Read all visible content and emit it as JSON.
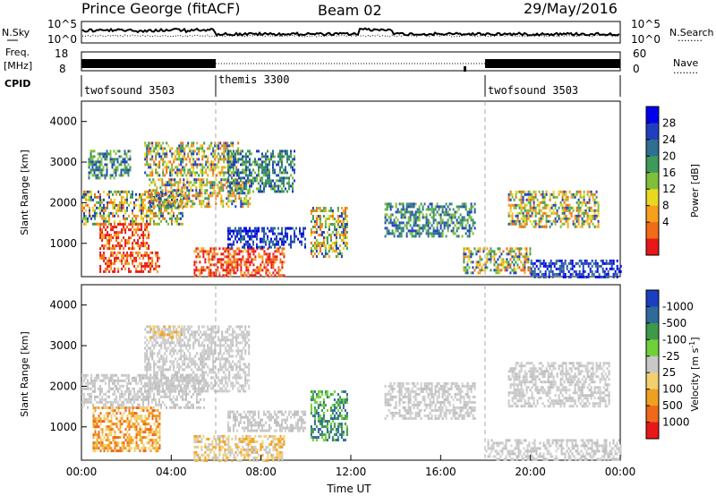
{
  "header": {
    "station": "Prince George (fitACF)",
    "beam": "Beam 02",
    "date": "29/May/2016"
  },
  "strip_panels": {
    "noise_left_label": "N.Sky",
    "noise_left_ticks": [
      "10^5",
      "10^0"
    ],
    "noise_right_ticks": [
      "10^5",
      "10^0"
    ],
    "noise_right_label": "N.Search",
    "freq_left_label": "Freq.",
    "freq_left_unit": "[MHz]",
    "freq_left_ticks": [
      "18",
      "8"
    ],
    "freq_right_ticks": [
      "60",
      "0"
    ],
    "freq_right_label": "Nave",
    "cpid_label": "CPID",
    "cpid_segments": [
      {
        "name": "twofsound 3503",
        "start_hour": 0,
        "end_hour": 6
      },
      {
        "name": "themis 3300",
        "start_hour": 6,
        "end_hour": 18
      },
      {
        "name": "twofsound 3503",
        "start_hour": 18,
        "end_hour": 24
      }
    ],
    "right_dotted": "........"
  },
  "chart_data": [
    {
      "type": "heatmap",
      "title": "",
      "ylabel": "Slant Range [km]",
      "xlabel": "",
      "xlim": [
        0,
        24
      ],
      "ylim": [
        180,
        4500
      ],
      "yticks": [
        "1000",
        "2000",
        "3000",
        "4000"
      ],
      "grid": false,
      "colorbar": {
        "label": "Power [dB]",
        "ticks": [
          "4",
          "8",
          "12",
          "16",
          "20",
          "24",
          "28"
        ],
        "colors": [
          "#0000ee",
          "#1f3fbf",
          "#2f6f8f",
          "#3e9a5a",
          "#7fbf3a",
          "#e8d820",
          "#f6a01c",
          "#f06c18",
          "#e81818"
        ]
      },
      "regions": [
        {
          "t0": 0.3,
          "t1": 2.2,
          "r0": 2600,
          "r1": 3300,
          "level": "mid"
        },
        {
          "t0": 2.8,
          "t1": 7.0,
          "r0": 2700,
          "r1": 3500,
          "level": "high"
        },
        {
          "t0": 0.0,
          "t1": 4.5,
          "r0": 1500,
          "r1": 2300,
          "level": "high"
        },
        {
          "t0": 3.0,
          "t1": 7.5,
          "r0": 1900,
          "r1": 2600,
          "level": "high"
        },
        {
          "t0": 0.8,
          "t1": 3.0,
          "r0": 900,
          "r1": 1500,
          "level": "max"
        },
        {
          "t0": 0.8,
          "t1": 3.5,
          "r0": 300,
          "r1": 800,
          "level": "max"
        },
        {
          "t0": 5.0,
          "t1": 9.0,
          "r0": 200,
          "r1": 900,
          "level": "max"
        },
        {
          "t0": 6.5,
          "t1": 9.5,
          "r0": 2300,
          "r1": 3300,
          "level": "mid"
        },
        {
          "t0": 6.5,
          "t1": 10.0,
          "r0": 900,
          "r1": 1400,
          "level": "low"
        },
        {
          "t0": 10.2,
          "t1": 11.8,
          "r0": 700,
          "r1": 1900,
          "level": "high"
        },
        {
          "t0": 13.5,
          "t1": 17.5,
          "r0": 1200,
          "r1": 2000,
          "level": "mid"
        },
        {
          "t0": 17.0,
          "t1": 20.0,
          "r0": 300,
          "r1": 900,
          "level": "high"
        },
        {
          "t0": 19.0,
          "t1": 23.0,
          "r0": 1400,
          "r1": 2300,
          "level": "high"
        },
        {
          "t0": 20.0,
          "t1": 24.0,
          "r0": 200,
          "r1": 600,
          "level": "low"
        }
      ]
    },
    {
      "type": "heatmap",
      "title": "",
      "ylabel": "Slant Range [km]",
      "xlabel": "Time UT",
      "xlim": [
        0,
        24
      ],
      "ylim": [
        180,
        4500
      ],
      "xticks": [
        "00:00",
        "04:00",
        "08:00",
        "12:00",
        "16:00",
        "20:00",
        "00:00"
      ],
      "yticks": [
        "1000",
        "2000",
        "3000",
        "4000"
      ],
      "grid": false,
      "colorbar": {
        "label": "Velocity",
        "unit": "[m s",
        "unit_sup": "-1",
        "unit_end": "]",
        "ticks": [
          "1000",
          "500",
          "100",
          "25",
          "-25",
          "-100",
          "-500",
          "-1000"
        ],
        "colors": [
          "#1a3fbf",
          "#2f6a9a",
          "#3c9a4a",
          "#6fd03a",
          "#c8c8c8",
          "#f2d070",
          "#f0a020",
          "#f06818",
          "#e81818"
        ]
      },
      "regions": [
        {
          "t0": 0.0,
          "t1": 5.5,
          "r0": 1500,
          "r1": 2300,
          "level": "ground"
        },
        {
          "t0": 2.8,
          "t1": 7.5,
          "r0": 1900,
          "r1": 3500,
          "level": "ground"
        },
        {
          "t0": 0.5,
          "t1": 3.5,
          "r0": 400,
          "r1": 1500,
          "level": "away"
        },
        {
          "t0": 3.0,
          "t1": 4.5,
          "r0": 3200,
          "r1": 3500,
          "level": "weakaway"
        },
        {
          "t0": 5.0,
          "t1": 9.0,
          "r0": 200,
          "r1": 800,
          "level": "weakaway"
        },
        {
          "t0": 6.5,
          "t1": 10.0,
          "r0": 900,
          "r1": 1400,
          "level": "ground"
        },
        {
          "t0": 10.2,
          "t1": 11.8,
          "r0": 700,
          "r1": 1900,
          "level": "toward"
        },
        {
          "t0": 13.5,
          "t1": 17.5,
          "r0": 1200,
          "r1": 2100,
          "level": "ground"
        },
        {
          "t0": 18.0,
          "t1": 24.0,
          "r0": 200,
          "r1": 700,
          "level": "ground"
        },
        {
          "t0": 19.0,
          "t1": 23.5,
          "r0": 1500,
          "r1": 2600,
          "level": "ground"
        }
      ]
    }
  ]
}
